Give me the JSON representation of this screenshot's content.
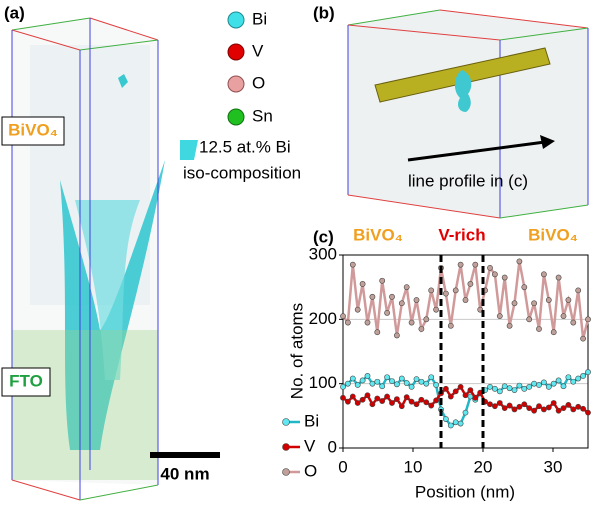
{
  "panel_a": {
    "label": "(a)",
    "layer_top": "BiVO₄",
    "layer_bottom": "FTO",
    "scale_bar": "40 nm",
    "legend": [
      "Bi",
      "V",
      "O",
      "Sn"
    ],
    "iso_line1": "12.5 at.% Bi",
    "iso_line2": "iso-composition"
  },
  "panel_b": {
    "label": "(b)",
    "arrow_label": "line profile in (c)"
  },
  "chart_data": {
    "type": "line",
    "panel_label": "(c)",
    "xlabel": "Position (nm)",
    "ylabel": "No. of atoms",
    "xlim": [
      0,
      35
    ],
    "ylim": [
      0,
      300
    ],
    "xticks": [
      0,
      10,
      20,
      30
    ],
    "yticks": [
      0,
      100,
      200,
      300
    ],
    "grid": true,
    "vlines": [
      14,
      20
    ],
    "regions": [
      {
        "text": "BiVO₄",
        "x": 5,
        "color": "#f0a020"
      },
      {
        "text": "V-rich",
        "x": 17,
        "color": "#e00000"
      },
      {
        "text": "BiVO₄",
        "x": 30,
        "color": "#f0a020"
      }
    ],
    "x": [
      0,
      0.7,
      1.4,
      2.1,
      2.8,
      3.5,
      4.2,
      4.9,
      5.6,
      6.3,
      7,
      7.7,
      8.4,
      9.1,
      9.8,
      10.5,
      11.2,
      11.9,
      12.6,
      13.3,
      14,
      14.7,
      15.4,
      16.1,
      16.8,
      17.5,
      18.2,
      18.9,
      19.6,
      20.3,
      21,
      21.7,
      22.4,
      23.1,
      23.8,
      24.5,
      25.2,
      25.9,
      26.6,
      27.3,
      28,
      28.7,
      29.4,
      30.1,
      30.8,
      31.5,
      32.2,
      32.9,
      33.6,
      34.3,
      35
    ],
    "series": [
      {
        "name": "Bi",
        "color": "#20b8c8",
        "marker": "#60e8f0",
        "values": [
          95,
          100,
          108,
          98,
          105,
          112,
          100,
          103,
          96,
          110,
          104,
          99,
          108,
          101,
          95,
          107,
          103,
          100,
          110,
          98,
          60,
          45,
          35,
          40,
          38,
          55,
          80,
          75,
          85,
          90,
          95,
          92,
          88,
          96,
          93,
          90,
          97,
          92,
          95,
          100,
          98,
          102,
          95,
          100,
          105,
          96,
          110,
          103,
          108,
          112,
          118
        ]
      },
      {
        "name": "V",
        "color": "#d00000",
        "marker": "#d00000",
        "values": [
          78,
          72,
          80,
          70,
          75,
          82,
          68,
          77,
          73,
          80,
          70,
          76,
          65,
          79,
          72,
          68,
          75,
          71,
          66,
          74,
          85,
          92,
          80,
          88,
          95,
          82,
          90,
          78,
          86,
          72,
          68,
          65,
          70,
          62,
          66,
          60,
          64,
          68,
          62,
          58,
          65,
          60,
          63,
          70,
          58,
          62,
          67,
          60,
          64,
          61,
          55
        ]
      },
      {
        "name": "O",
        "color": "#d09a9a",
        "marker": "#c0a098",
        "values": [
          205,
          195,
          285,
          215,
          255,
          195,
          235,
          180,
          260,
          210,
          235,
          175,
          225,
          250,
          195,
          230,
          185,
          200,
          245,
          215,
          280,
          240,
          190,
          245,
          285,
          230,
          255,
          285,
          215,
          245,
          280,
          270,
          205,
          265,
          190,
          225,
          290,
          250,
          200,
          225,
          185,
          270,
          230,
          180,
          265,
          205,
          230,
          195,
          245,
          170,
          200
        ]
      }
    ]
  }
}
